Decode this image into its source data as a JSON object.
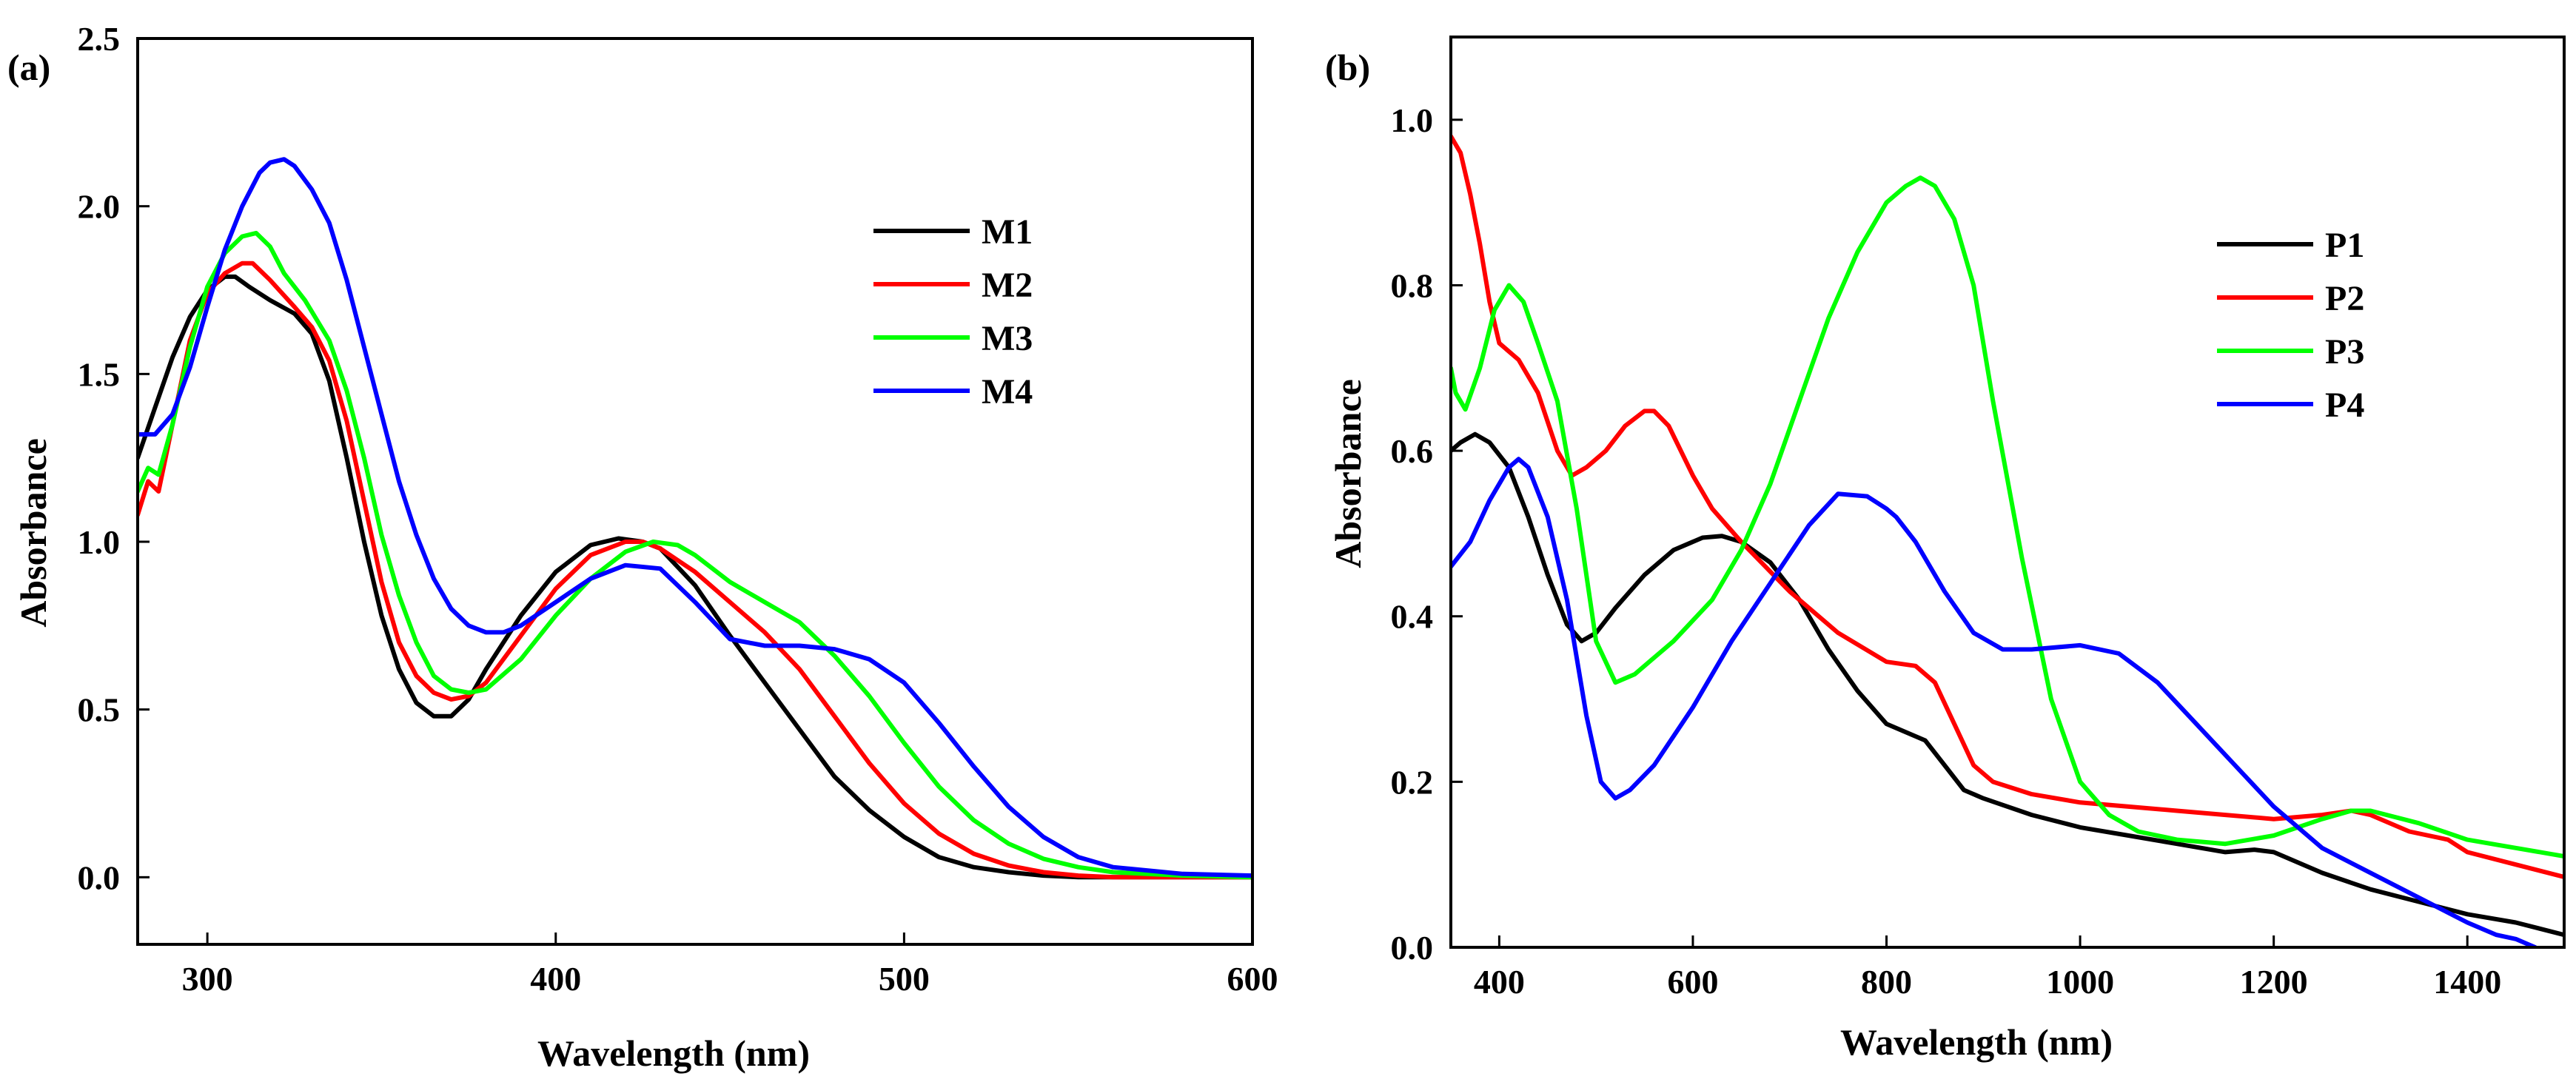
{
  "chart_data": [
    {
      "type": "line",
      "panel_label": "(a)",
      "xlabel": "Wavelength (nm)",
      "ylabel": "Absorbance",
      "xlim": [
        280,
        600
      ],
      "ylim": [
        -0.2,
        2.5
      ],
      "xticks": [
        300,
        400,
        500,
        600
      ],
      "yticks": [
        0.0,
        0.5,
        1.0,
        1.5,
        2.0,
        2.5
      ],
      "xtick_labels": [
        "300",
        "400",
        "500",
        "600"
      ],
      "ytick_labels": [
        "0.0",
        "0.5",
        "1.0",
        "1.5",
        "2.0",
        "2.5"
      ],
      "legend_position": "center-right",
      "series": [
        {
          "name": "M1",
          "color": "#000000",
          "x": [
            280,
            285,
            290,
            295,
            300,
            305,
            308,
            312,
            318,
            325,
            330,
            335,
            340,
            345,
            350,
            355,
            360,
            365,
            370,
            375,
            380,
            390,
            400,
            410,
            418,
            425,
            430,
            440,
            450,
            460,
            470,
            480,
            490,
            500,
            510,
            520,
            530,
            540,
            550,
            560,
            580,
            600
          ],
          "y": [
            1.25,
            1.4,
            1.55,
            1.67,
            1.75,
            1.79,
            1.79,
            1.76,
            1.72,
            1.68,
            1.62,
            1.48,
            1.25,
            1.0,
            0.78,
            0.62,
            0.52,
            0.48,
            0.48,
            0.53,
            0.62,
            0.78,
            0.91,
            0.99,
            1.01,
            1.0,
            0.98,
            0.87,
            0.72,
            0.58,
            0.44,
            0.3,
            0.2,
            0.12,
            0.06,
            0.03,
            0.015,
            0.005,
            0.0,
            0.0,
            0.0,
            0.0
          ]
        },
        {
          "name": "M2",
          "color": "#ff0000",
          "x": [
            280,
            283,
            286,
            290,
            295,
            300,
            305,
            310,
            313,
            318,
            325,
            330,
            335,
            340,
            345,
            350,
            355,
            360,
            365,
            370,
            375,
            380,
            390,
            400,
            410,
            420,
            425,
            430,
            440,
            450,
            460,
            470,
            480,
            490,
            500,
            510,
            520,
            530,
            540,
            550,
            560,
            580,
            600
          ],
          "y": [
            1.08,
            1.18,
            1.15,
            1.35,
            1.6,
            1.74,
            1.8,
            1.83,
            1.83,
            1.78,
            1.7,
            1.64,
            1.54,
            1.36,
            1.12,
            0.88,
            0.7,
            0.6,
            0.55,
            0.53,
            0.54,
            0.58,
            0.72,
            0.86,
            0.96,
            1.0,
            1.0,
            0.98,
            0.91,
            0.82,
            0.73,
            0.62,
            0.48,
            0.34,
            0.22,
            0.13,
            0.07,
            0.035,
            0.015,
            0.005,
            0.0,
            0.0,
            0.0
          ]
        },
        {
          "name": "M3",
          "color": "#00ff00",
          "x": [
            280,
            283,
            286,
            290,
            295,
            300,
            305,
            310,
            314,
            318,
            322,
            328,
            335,
            340,
            345,
            350,
            355,
            360,
            365,
            370,
            375,
            380,
            390,
            400,
            410,
            420,
            428,
            435,
            440,
            450,
            460,
            470,
            480,
            490,
            500,
            510,
            520,
            530,
            540,
            550,
            560,
            580,
            600
          ],
          "y": [
            1.15,
            1.22,
            1.2,
            1.35,
            1.58,
            1.76,
            1.86,
            1.91,
            1.92,
            1.88,
            1.8,
            1.72,
            1.6,
            1.45,
            1.25,
            1.02,
            0.84,
            0.7,
            0.6,
            0.56,
            0.55,
            0.56,
            0.65,
            0.78,
            0.89,
            0.97,
            1.0,
            0.99,
            0.96,
            0.88,
            0.82,
            0.76,
            0.66,
            0.54,
            0.4,
            0.27,
            0.17,
            0.1,
            0.055,
            0.03,
            0.015,
            0.005,
            0.0
          ]
        },
        {
          "name": "M4",
          "color": "#0000ff",
          "x": [
            280,
            285,
            290,
            295,
            300,
            305,
            310,
            315,
            318,
            322,
            325,
            330,
            335,
            340,
            345,
            350,
            355,
            360,
            365,
            370,
            375,
            380,
            385,
            390,
            400,
            410,
            420,
            430,
            440,
            450,
            460,
            470,
            480,
            490,
            500,
            510,
            520,
            530,
            540,
            550,
            560,
            580,
            600
          ],
          "y": [
            1.32,
            1.32,
            1.38,
            1.52,
            1.7,
            1.87,
            2.0,
            2.1,
            2.13,
            2.14,
            2.12,
            2.05,
            1.95,
            1.78,
            1.58,
            1.38,
            1.18,
            1.02,
            0.89,
            0.8,
            0.75,
            0.73,
            0.73,
            0.75,
            0.82,
            0.89,
            0.93,
            0.92,
            0.82,
            0.71,
            0.69,
            0.69,
            0.68,
            0.65,
            0.58,
            0.46,
            0.33,
            0.21,
            0.12,
            0.06,
            0.03,
            0.01,
            0.005
          ]
        }
      ]
    },
    {
      "type": "line",
      "panel_label": "(b)",
      "xlabel": "Wavelength (nm)",
      "ylabel": "Absorbance",
      "xlim": [
        350,
        1500
      ],
      "ylim": [
        0.0,
        1.1
      ],
      "xticks": [
        400,
        600,
        800,
        1000,
        1200,
        1400
      ],
      "yticks": [
        0.0,
        0.2,
        0.4,
        0.6,
        0.8,
        1.0
      ],
      "xtick_labels": [
        "400",
        "600",
        "800",
        "1000",
        "1200",
        "1400"
      ],
      "ytick_labels": [
        "0.0",
        "0.2",
        "0.4",
        "0.6",
        "0.8",
        "1.0"
      ],
      "legend_position": "upper-right",
      "series": [
        {
          "name": "P1",
          "color": "#000000",
          "x": [
            350,
            360,
            375,
            390,
            410,
            430,
            450,
            470,
            485,
            500,
            520,
            550,
            580,
            610,
            630,
            650,
            680,
            710,
            740,
            770,
            800,
            840,
            860,
            880,
            900,
            950,
            1000,
            1050,
            1100,
            1150,
            1180,
            1200,
            1250,
            1300,
            1350,
            1400,
            1450,
            1500
          ],
          "y": [
            0.6,
            0.61,
            0.62,
            0.61,
            0.58,
            0.52,
            0.45,
            0.39,
            0.37,
            0.38,
            0.41,
            0.45,
            0.48,
            0.495,
            0.497,
            0.49,
            0.465,
            0.42,
            0.36,
            0.31,
            0.27,
            0.25,
            0.22,
            0.19,
            0.18,
            0.16,
            0.145,
            0.135,
            0.125,
            0.115,
            0.118,
            0.115,
            0.09,
            0.07,
            0.055,
            0.04,
            0.03,
            0.015
          ]
        },
        {
          "name": "P2",
          "color": "#ff0000",
          "x": [
            350,
            360,
            370,
            380,
            390,
            400,
            420,
            440,
            460,
            475,
            490,
            510,
            530,
            550,
            560,
            575,
            600,
            620,
            650,
            700,
            750,
            800,
            830,
            850,
            870,
            890,
            910,
            950,
            1000,
            1050,
            1100,
            1150,
            1200,
            1250,
            1280,
            1300,
            1340,
            1380,
            1400,
            1450,
            1500
          ],
          "y": [
            0.98,
            0.96,
            0.91,
            0.85,
            0.78,
            0.73,
            0.71,
            0.67,
            0.6,
            0.57,
            0.58,
            0.6,
            0.63,
            0.648,
            0.648,
            0.63,
            0.57,
            0.53,
            0.49,
            0.43,
            0.38,
            0.345,
            0.34,
            0.32,
            0.27,
            0.22,
            0.2,
            0.185,
            0.175,
            0.17,
            0.165,
            0.16,
            0.155,
            0.16,
            0.165,
            0.16,
            0.14,
            0.13,
            0.115,
            0.1,
            0.085
          ]
        },
        {
          "name": "P3",
          "color": "#00ff00",
          "x": [
            350,
            355,
            365,
            380,
            395,
            410,
            425,
            440,
            460,
            480,
            500,
            520,
            540,
            560,
            580,
            600,
            620,
            650,
            680,
            710,
            740,
            770,
            800,
            820,
            835,
            850,
            870,
            890,
            910,
            940,
            970,
            1000,
            1030,
            1060,
            1100,
            1150,
            1200,
            1250,
            1280,
            1300,
            1350,
            1400,
            1450,
            1500
          ],
          "y": [
            0.7,
            0.67,
            0.65,
            0.7,
            0.77,
            0.8,
            0.78,
            0.73,
            0.66,
            0.53,
            0.37,
            0.32,
            0.33,
            0.35,
            0.37,
            0.395,
            0.42,
            0.48,
            0.56,
            0.66,
            0.76,
            0.84,
            0.9,
            0.92,
            0.93,
            0.92,
            0.88,
            0.8,
            0.66,
            0.47,
            0.3,
            0.2,
            0.16,
            0.14,
            0.13,
            0.125,
            0.135,
            0.155,
            0.165,
            0.165,
            0.15,
            0.13,
            0.12,
            0.11
          ]
        },
        {
          "name": "P4",
          "color": "#0000ff",
          "x": [
            350,
            370,
            390,
            410,
            420,
            430,
            450,
            470,
            490,
            505,
            520,
            535,
            560,
            600,
            640,
            680,
            720,
            750,
            780,
            800,
            810,
            830,
            860,
            890,
            920,
            950,
            1000,
            1040,
            1080,
            1120,
            1160,
            1200,
            1250,
            1300,
            1350,
            1400,
            1430,
            1450,
            1470
          ],
          "y": [
            0.46,
            0.49,
            0.54,
            0.58,
            0.59,
            0.58,
            0.52,
            0.42,
            0.28,
            0.2,
            0.18,
            0.19,
            0.22,
            0.29,
            0.37,
            0.44,
            0.51,
            0.548,
            0.545,
            0.53,
            0.52,
            0.49,
            0.43,
            0.38,
            0.36,
            0.36,
            0.365,
            0.355,
            0.32,
            0.27,
            0.22,
            0.17,
            0.12,
            0.09,
            0.06,
            0.03,
            0.015,
            0.01,
            0.0
          ]
        }
      ]
    }
  ]
}
